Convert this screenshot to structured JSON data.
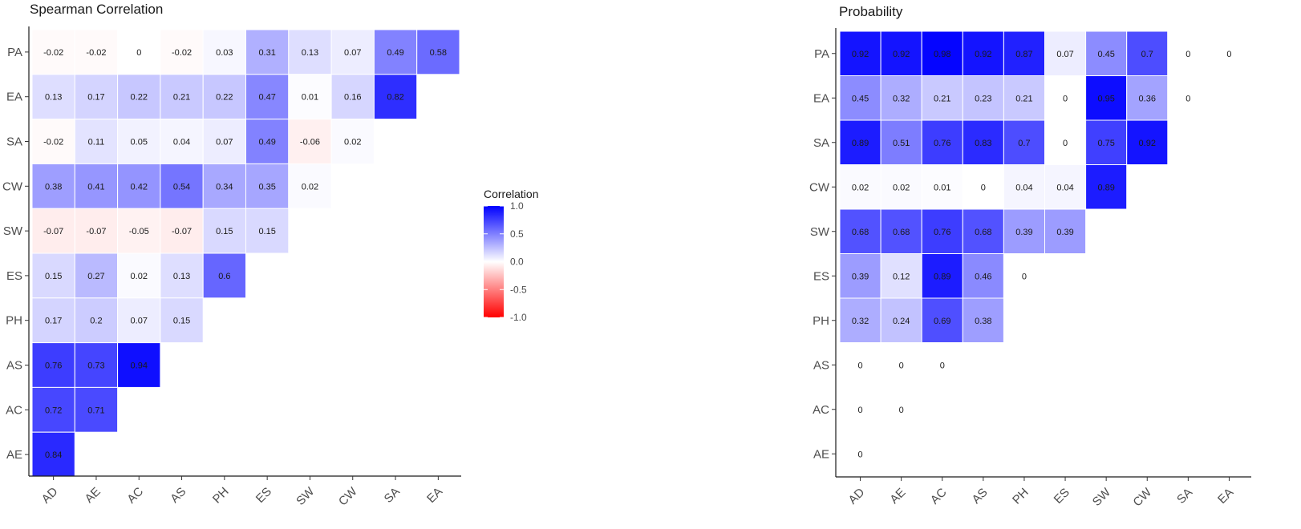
{
  "chart_data": [
    {
      "type": "heatmap",
      "title": "Spearman Correlation",
      "x_categories": [
        "AD",
        "AE",
        "AC",
        "AS",
        "PH",
        "ES",
        "SW",
        "CW",
        "SA",
        "EA"
      ],
      "y_categories": [
        "PA",
        "EA",
        "SA",
        "CW",
        "SW",
        "ES",
        "PH",
        "AS",
        "AC",
        "AE"
      ],
      "rows": [
        [
          -0.02,
          -0.02,
          0,
          -0.02,
          0.03,
          0.31,
          0.13,
          0.07,
          0.49,
          0.58
        ],
        [
          0.13,
          0.17,
          0.22,
          0.21,
          0.22,
          0.47,
          0.01,
          0.16,
          0.82
        ],
        [
          -0.02,
          0.11,
          0.05,
          0.04,
          0.07,
          0.49,
          -0.06,
          0.02
        ],
        [
          0.38,
          0.41,
          0.42,
          0.54,
          0.34,
          0.35,
          0.02
        ],
        [
          -0.07,
          -0.07,
          -0.05,
          -0.07,
          0.15,
          0.15
        ],
        [
          0.15,
          0.27,
          0.02,
          0.13,
          0.6
        ],
        [
          0.17,
          0.2,
          0.07,
          0.15
        ],
        [
          0.76,
          0.73,
          0.94
        ],
        [
          0.72,
          0.71
        ],
        [
          0.84
        ]
      ],
      "color_range": [
        -1,
        1
      ],
      "colors": {
        "low": "#ff0000",
        "mid": "#ffffff",
        "high": "#0000ff"
      }
    },
    {
      "type": "heatmap",
      "title": "Probability",
      "x_categories": [
        "AD",
        "AE",
        "AC",
        "AS",
        "PH",
        "ES",
        "SW",
        "CW",
        "SA",
        "EA"
      ],
      "y_categories": [
        "PA",
        "EA",
        "SA",
        "CW",
        "SW",
        "ES",
        "PH",
        "AS",
        "AC",
        "AE"
      ],
      "rows": [
        [
          0.92,
          0.92,
          0.98,
          0.92,
          0.87,
          0.07,
          0.45,
          0.7,
          0,
          0
        ],
        [
          0.45,
          0.32,
          0.21,
          0.23,
          0.21,
          0,
          0.95,
          0.36,
          0
        ],
        [
          0.89,
          0.51,
          0.76,
          0.83,
          0.7,
          0,
          0.75,
          0.92
        ],
        [
          0.02,
          0.02,
          0.01,
          0,
          0.04,
          0.04,
          0.89
        ],
        [
          0.68,
          0.68,
          0.76,
          0.68,
          0.39,
          0.39
        ],
        [
          0.39,
          0.12,
          0.89,
          0.46,
          0
        ],
        [
          0.32,
          0.24,
          0.69,
          0.38
        ],
        [
          0,
          0,
          0
        ],
        [
          0,
          0
        ],
        [
          0
        ]
      ],
      "color_range": [
        0,
        1
      ],
      "colors": {
        "low": "#ffffff",
        "high": "#0000ff"
      }
    }
  ],
  "legend": {
    "title": "Correlation",
    "ticks": [
      "1.0",
      "0.5",
      "0.0",
      "-0.5",
      "-1.0"
    ],
    "tick_values": [
      1,
      0.5,
      0,
      -0.5,
      -1
    ]
  }
}
